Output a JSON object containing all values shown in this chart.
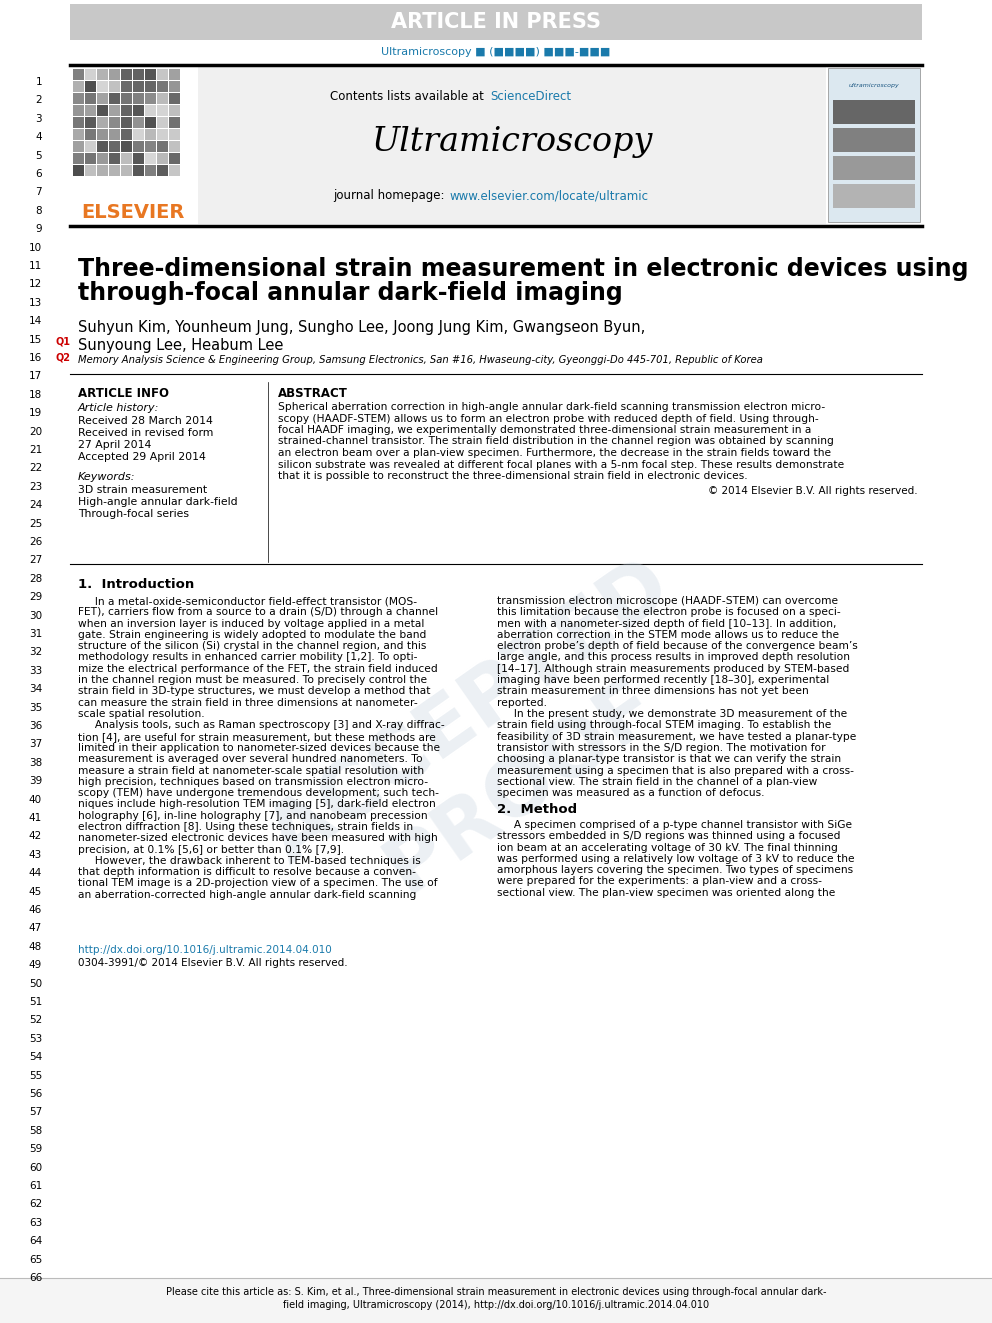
{
  "article_in_press_bg": "#c8c8c8",
  "article_in_press_text": "ARTICLE IN PRESS",
  "journal_citation": "Ultramicroscopy ■ (■■■■) ■■■-■■■",
  "journal_name": "Ultramicroscopy",
  "homepage_url": "www.elsevier.com/locate/ultramic",
  "elsevier_color": "#e87722",
  "link_color": "#1a7aab",
  "title_line1": "Three-dimensional strain measurement in electronic devices using",
  "title_line2": "through-focal annular dark-field imaging",
  "authors": "Suhyun Kim, Younheum Jung, Sungho Lee, Joong Jung Kim, Gwangseon Byun,",
  "authors2": "Sunyoung Lee, Heabum Lee",
  "affiliation": "Memory Analysis Science & Engineering Group, Samsung Electronics, San #16, Hwaseung-city, Gyeonggi-Do 445-701, Republic of Korea",
  "article_info_title": "ARTICLE INFO",
  "article_history_title": "Article history:",
  "received1": "Received 28 March 2014",
  "received2": "Received in revised form",
  "received2b": "27 April 2014",
  "accepted": "Accepted 29 April 2014",
  "keywords_title": "Keywords:",
  "keyword1": "3D strain measurement",
  "keyword2": "High-angle annular dark-field",
  "keyword3": "Through-focal series",
  "abstract_title": "ABSTRACT",
  "copyright": "© 2014 Elsevier B.V. All rights reserved.",
  "section1_title": "1.  Introduction",
  "section2_title": "2.  Method",
  "doi_text": "http://dx.doi.org/10.1016/j.ultramic.2014.04.010",
  "footer_issn": "0304-3991/© 2014 Elsevier B.V. All rights reserved.",
  "footer_cite": "Please cite this article as: S. Kim, et al., Three-dimensional strain measurement in electronic devices using through-focal annular dark-field imaging, Ultramicroscopy (2014), http://dx.doi.org/10.1016/j.ultramic.2014.04.010",
  "line_numbers": [
    "1",
    "2",
    "3",
    "4",
    "5",
    "6",
    "7",
    "8",
    "9",
    "10",
    "11",
    "12",
    "13",
    "14",
    "15",
    "16",
    "17",
    "18",
    "19",
    "20",
    "21",
    "22",
    "23",
    "24",
    "25",
    "26",
    "27",
    "28",
    "29",
    "30",
    "31",
    "32",
    "33",
    "34",
    "35",
    "36",
    "37",
    "38",
    "39",
    "40",
    "41",
    "42",
    "43",
    "44",
    "45",
    "46",
    "47",
    "48",
    "49",
    "50",
    "51",
    "52",
    "53",
    "54",
    "55",
    "56",
    "57",
    "58",
    "59",
    "60",
    "61",
    "62",
    "63",
    "64",
    "65",
    "66"
  ],
  "q1_color": "#cc0000",
  "q2_color": "#cc0000",
  "proof_color": "#c8d4e0",
  "abstract_lines": [
    "Spherical aberration correction in high-angle annular dark-field scanning transmission electron micro-",
    "scopy (HAADF-STEM) allows us to form an electron probe with reduced depth of field. Using through-",
    "focal HAADF imaging, we experimentally demonstrated three-dimensional strain measurement in a",
    "strained-channel transistor. The strain field distribution in the channel region was obtained by scanning",
    "an electron beam over a plan-view specimen. Furthermore, the decrease in the strain fields toward the",
    "silicon substrate was revealed at different focal planes with a 5-nm focal step. These results demonstrate",
    "that it is possible to reconstruct the three-dimensional strain field in electronic devices."
  ],
  "intro_left": [
    "     In a metal-oxide-semiconductor field-effect transistor (MOS-",
    "FET), carriers flow from a source to a drain (S/D) through a channel",
    "when an inversion layer is induced by voltage applied in a metal",
    "gate. Strain engineering is widely adopted to modulate the band",
    "structure of the silicon (Si) crystal in the channel region, and this",
    "methodology results in enhanced carrier mobility [1,2]. To opti-",
    "mize the electrical performance of the FET, the strain field induced",
    "in the channel region must be measured. To precisely control the",
    "strain field in 3D-type structures, we must develop a method that",
    "can measure the strain field in three dimensions at nanometer-",
    "scale spatial resolution.",
    "     Analysis tools, such as Raman spectroscopy [3] and X-ray diffrac-",
    "tion [4], are useful for strain measurement, but these methods are",
    "limited in their application to nanometer-sized devices because the",
    "measurement is averaged over several hundred nanometers. To",
    "measure a strain field at nanometer-scale spatial resolution with",
    "high precision, techniques based on transmission electron micro-",
    "scopy (TEM) have undergone tremendous development; such tech-",
    "niques include high-resolution TEM imaging [5], dark-field electron",
    "holography [6], in-line holography [7], and nanobeam precession",
    "electron diffraction [8]. Using these techniques, strain fields in",
    "nanometer-sized electronic devices have been measured with high",
    "precision, at 0.1% [5,6] or better than 0.1% [7,9].",
    "     However, the drawback inherent to TEM-based techniques is",
    "that depth information is difficult to resolve because a conven-",
    "tional TEM image is a 2D-projection view of a specimen. The use of",
    "an aberration-corrected high-angle annular dark-field scanning"
  ],
  "intro_right": [
    "transmission electron microscope (HAADF-STEM) can overcome",
    "this limitation because the electron probe is focused on a speci-",
    "men with a nanometer-sized depth of field [10–13]. In addition,",
    "aberration correction in the STEM mode allows us to reduce the",
    "electron probe’s depth of field because of the convergence beam’s",
    "large angle, and this process results in improved depth resolution",
    "[14–17]. Although strain measurements produced by STEM-based",
    "imaging have been performed recently [18–30], experimental",
    "strain measurement in three dimensions has not yet been",
    "reported.",
    "     In the present study, we demonstrate 3D measurement of the",
    "strain field using through-focal STEM imaging. To establish the",
    "feasibility of 3D strain measurement, we have tested a planar-type",
    "transistor with stressors in the S/D region. The motivation for",
    "choosing a planar-type transistor is that we can verify the strain",
    "measurement using a specimen that is also prepared with a cross-",
    "sectional view. The strain field in the channel of a plan-view",
    "specimen was measured as a function of defocus."
  ],
  "method_lines": [
    "     A specimen comprised of a p-type channel transistor with SiGe",
    "stressors embedded in S/D regions was thinned using a focused",
    "ion beam at an accelerating voltage of 30 kV. The final thinning",
    "was performed using a relatively low voltage of 3 kV to reduce the",
    "amorphous layers covering the specimen. Two types of specimens",
    "were prepared for the experiments: a plan-view and a cross-",
    "sectional view. The plan-view specimen was oriented along the"
  ]
}
